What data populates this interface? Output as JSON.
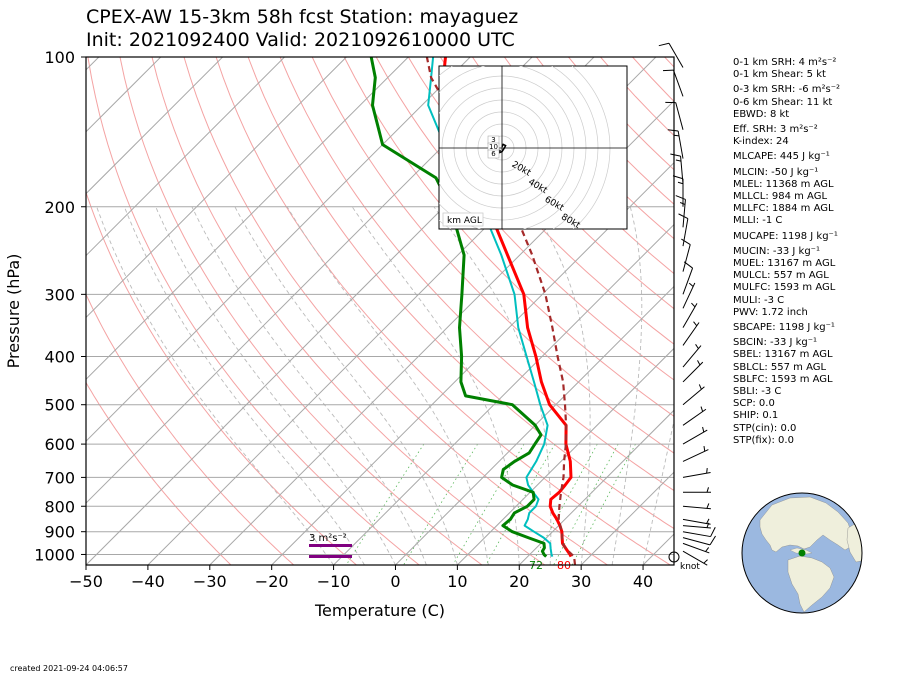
{
  "title": {
    "line1": "CPEX-AW 15-3km  58h fcst  Station: mayaguez",
    "line2": "Init: 2021092400  Valid: 2021092610000 UTC"
  },
  "footer": {
    "created": "created 2021-09-24 04:06:57"
  },
  "hodograph": {
    "label": "km AGL",
    "ring_labels": [
      "20kt",
      "40kt",
      "60kt",
      "80kt"
    ],
    "height_labels": [
      "3",
      "10",
      "6"
    ]
  },
  "srh_box": {
    "label": "3 m²s⁻²"
  },
  "surface_labels": {
    "dewpoint": "72",
    "temperature": "80"
  },
  "wind_unit_label": "knot",
  "indices": [
    "0-1 km SRH: 4 m²s⁻²",
    "0-1 km Shear: 5 kt",
    "0-3 km SRH: -6 m²s⁻²",
    "0-6 km Shear: 11 kt",
    "EBWD: 8 kt",
    "Eff. SRH: 3 m²s⁻²",
    "K-index: 24",
    "MLCAPE: 445 J kg⁻¹",
    "MLCIN: -50 J kg⁻¹",
    "MLEL: 11368 m AGL",
    "MLLCL: 984 m AGL",
    "MLLFC: 1884 m AGL",
    "MLLI: -1 C",
    "MUCAPE: 1198 J kg⁻¹",
    "MUCIN: -33 J kg⁻¹",
    "MUEL: 13167 m AGL",
    "MULCL: 557 m AGL",
    "MULFC: 1593 m AGL",
    "MULI: -3 C",
    "PWV: 1.72 inch",
    "SBCAPE: 1198 J kg⁻¹",
    "SBCIN: -33 J kg⁻¹",
    "SBEL: 13167 m AGL",
    "SBLCL: 557 m AGL",
    "SBLFC: 1593 m AGL",
    "SBLI: -3 C",
    "SCP: 0.0",
    "SHIP: 0.1",
    "STP(cin): 0.0",
    "STP(fix): 0.0"
  ],
  "chart_data": {
    "type": "line",
    "title": "CPEX-AW 15-3km  58h fcst  Station: mayaguez",
    "xlabel": "Temperature (C)",
    "ylabel": "Pressure (hPa)",
    "xlim": [
      -50,
      45
    ],
    "ylim": [
      1050,
      100
    ],
    "yscale": "log",
    "x_ticks": [
      -50,
      -40,
      -30,
      -20,
      -10,
      0,
      10,
      20,
      30,
      40
    ],
    "y_ticks": [
      100,
      200,
      300,
      400,
      500,
      600,
      700,
      800,
      900,
      1000
    ],
    "skew": 45,
    "grid": true,
    "colors": {
      "temperature": "#ff0000",
      "dewpoint": "#008000",
      "wetbulb": "#00bfbf",
      "parcel": "#a52a2a",
      "srh": "#800080"
    },
    "series": [
      {
        "name": "temperature",
        "points": [
          [
            1010,
            27
          ],
          [
            1000,
            26.5
          ],
          [
            975,
            25
          ],
          [
            950,
            23.5
          ],
          [
            925,
            22.5
          ],
          [
            900,
            21.5
          ],
          [
            875,
            20.2
          ],
          [
            850,
            18.7
          ],
          [
            825,
            17
          ],
          [
            800,
            15.5
          ],
          [
            775,
            14.5
          ],
          [
            750,
            14.7
          ],
          [
            725,
            14.5
          ],
          [
            700,
            14.2
          ],
          [
            650,
            11.5
          ],
          [
            600,
            8
          ],
          [
            550,
            5
          ],
          [
            500,
            -1
          ],
          [
            450,
            -6
          ],
          [
            400,
            -11
          ],
          [
            350,
            -17
          ],
          [
            300,
            -23
          ],
          [
            250,
            -32
          ],
          [
            200,
            -43
          ],
          [
            175,
            -50
          ],
          [
            150,
            -58
          ],
          [
            125,
            -67
          ],
          [
            110,
            -71
          ],
          [
            100,
            -74
          ]
        ]
      },
      {
        "name": "dewpoint",
        "points": [
          [
            1010,
            23
          ],
          [
            1000,
            22.3
          ],
          [
            985,
            21.5
          ],
          [
            970,
            21.3
          ],
          [
            950,
            20.5
          ],
          [
            925,
            17
          ],
          [
            900,
            13.5
          ],
          [
            875,
            11
          ],
          [
            850,
            11.2
          ],
          [
            825,
            10.8
          ],
          [
            800,
            11.8
          ],
          [
            775,
            11.8
          ],
          [
            750,
            10.5
          ],
          [
            725,
            6
          ],
          [
            700,
            3
          ],
          [
            675,
            2
          ],
          [
            650,
            2.5
          ],
          [
            625,
            3.5
          ],
          [
            600,
            3
          ],
          [
            575,
            2.5
          ],
          [
            550,
            0
          ],
          [
            500,
            -7
          ],
          [
            480,
            -16
          ],
          [
            450,
            -19
          ],
          [
            400,
            -23
          ],
          [
            350,
            -28
          ],
          [
            300,
            -33
          ],
          [
            250,
            -39
          ],
          [
            200,
            -49
          ],
          [
            175,
            -56
          ],
          [
            150,
            -70
          ],
          [
            125,
            -78
          ],
          [
            110,
            -82
          ],
          [
            100,
            -86
          ]
        ]
      },
      {
        "name": "wetbulb",
        "points": [
          [
            1010,
            24
          ],
          [
            1000,
            23.5
          ],
          [
            975,
            22.5
          ],
          [
            950,
            21.5
          ],
          [
            925,
            19.5
          ],
          [
            900,
            17
          ],
          [
            875,
            14.5
          ],
          [
            850,
            14
          ],
          [
            825,
            13.2
          ],
          [
            800,
            13.2
          ],
          [
            775,
            12.5
          ],
          [
            750,
            10.5
          ],
          [
            725,
            8.5
          ],
          [
            700,
            7
          ],
          [
            650,
            6
          ],
          [
            600,
            4.5
          ],
          [
            550,
            2
          ],
          [
            500,
            -2.5
          ],
          [
            450,
            -7.2
          ],
          [
            400,
            -12.5
          ],
          [
            350,
            -18.5
          ],
          [
            300,
            -24.5
          ],
          [
            250,
            -33
          ],
          [
            200,
            -44
          ],
          [
            175,
            -51
          ],
          [
            150,
            -60
          ],
          [
            125,
            -69
          ],
          [
            110,
            -73
          ],
          [
            100,
            -76
          ]
        ]
      },
      {
        "name": "parcel",
        "points": [
          [
            1050,
            29
          ],
          [
            1010,
            27.5
          ],
          [
            975,
            25
          ],
          [
            950,
            23.5
          ],
          [
            925,
            22.5
          ],
          [
            900,
            21.5
          ],
          [
            850,
            19
          ],
          [
            800,
            17
          ],
          [
            750,
            15
          ],
          [
            700,
            13
          ],
          [
            650,
            10.5
          ],
          [
            600,
            8
          ],
          [
            550,
            5
          ],
          [
            500,
            1.5
          ],
          [
            450,
            -2.5
          ],
          [
            400,
            -7.5
          ],
          [
            350,
            -13
          ],
          [
            300,
            -19.5
          ],
          [
            250,
            -28
          ],
          [
            200,
            -39
          ],
          [
            150,
            -56
          ],
          [
            125,
            -66
          ],
          [
            110,
            -73
          ],
          [
            100,
            -77
          ]
        ]
      }
    ],
    "hodograph": {
      "type": "line",
      "ring_speeds_kt": [
        20,
        40,
        60,
        80
      ],
      "points_uv_kt": [
        [
          -1.5,
          -1.5
        ],
        [
          -2.5,
          -4
        ],
        [
          0,
          -3
        ],
        [
          2,
          0
        ],
        [
          3,
          2
        ],
        [
          1,
          3
        ],
        [
          0,
          1
        ]
      ]
    },
    "winds": [
      {
        "p": 1010,
        "spd": 0,
        "dir": 0
      },
      {
        "p": 985,
        "spd": 6,
        "dir": 120
      },
      {
        "p": 950,
        "spd": 7,
        "dir": 110
      },
      {
        "p": 925,
        "spd": 8,
        "dir": 105
      },
      {
        "p": 900,
        "spd": 8,
        "dir": 100
      },
      {
        "p": 875,
        "spd": 7,
        "dir": 95
      },
      {
        "p": 850,
        "spd": 6,
        "dir": 100
      },
      {
        "p": 800,
        "spd": 6,
        "dir": 95
      },
      {
        "p": 750,
        "spd": 5,
        "dir": 90
      },
      {
        "p": 700,
        "spd": 5,
        "dir": 80
      },
      {
        "p": 650,
        "spd": 5,
        "dir": 65
      },
      {
        "p": 600,
        "spd": 5,
        "dir": 60
      },
      {
        "p": 550,
        "spd": 5,
        "dir": 55
      },
      {
        "p": 500,
        "spd": 5,
        "dir": 50
      },
      {
        "p": 450,
        "spd": 5,
        "dir": 45
      },
      {
        "p": 420,
        "spd": 5,
        "dir": 40
      },
      {
        "p": 380,
        "spd": 5,
        "dir": 35
      },
      {
        "p": 350,
        "spd": 6,
        "dir": 30
      },
      {
        "p": 320,
        "spd": 7,
        "dir": 25
      },
      {
        "p": 300,
        "spd": 8,
        "dir": 20
      },
      {
        "p": 270,
        "spd": 10,
        "dir": 15
      },
      {
        "p": 240,
        "spd": 12,
        "dir": 10
      },
      {
        "p": 220,
        "spd": 14,
        "dir": 5
      },
      {
        "p": 200,
        "spd": 15,
        "dir": 0
      },
      {
        "p": 180,
        "spd": 15,
        "dir": 355
      },
      {
        "p": 160,
        "spd": 14,
        "dir": 350
      },
      {
        "p": 140,
        "spd": 10,
        "dir": 345
      },
      {
        "p": 120,
        "spd": 12,
        "dir": 340
      },
      {
        "p": 105,
        "spd": 8,
        "dir": 330
      }
    ]
  }
}
